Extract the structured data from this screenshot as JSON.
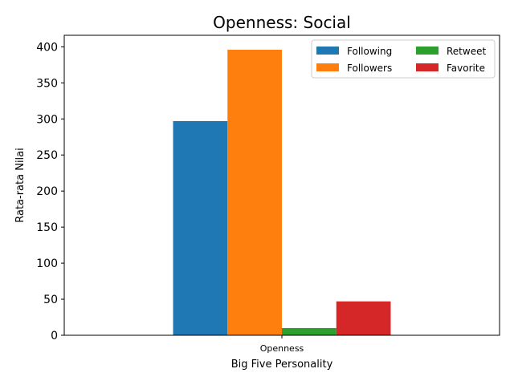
{
  "chart_data": {
    "type": "bar",
    "title": "Openness: Social",
    "xlabel": "Big Five Personality",
    "ylabel": "Rata-rata Nilai",
    "categories": [
      "Openness"
    ],
    "series": [
      {
        "name": "Following",
        "color": "#1f77b4",
        "values": [
          297
        ]
      },
      {
        "name": "Followers",
        "color": "#ff7f0e",
        "values": [
          396
        ]
      },
      {
        "name": "Retweet",
        "color": "#2ca02c",
        "values": [
          10
        ]
      },
      {
        "name": "Favorite",
        "color": "#d62728",
        "values": [
          47
        ]
      }
    ],
    "ylim": [
      0,
      416
    ],
    "yticks": [
      0,
      50,
      100,
      150,
      200,
      250,
      300,
      350,
      400
    ],
    "grid": false,
    "legend": {
      "placement": "top-right",
      "columns": 2
    }
  }
}
